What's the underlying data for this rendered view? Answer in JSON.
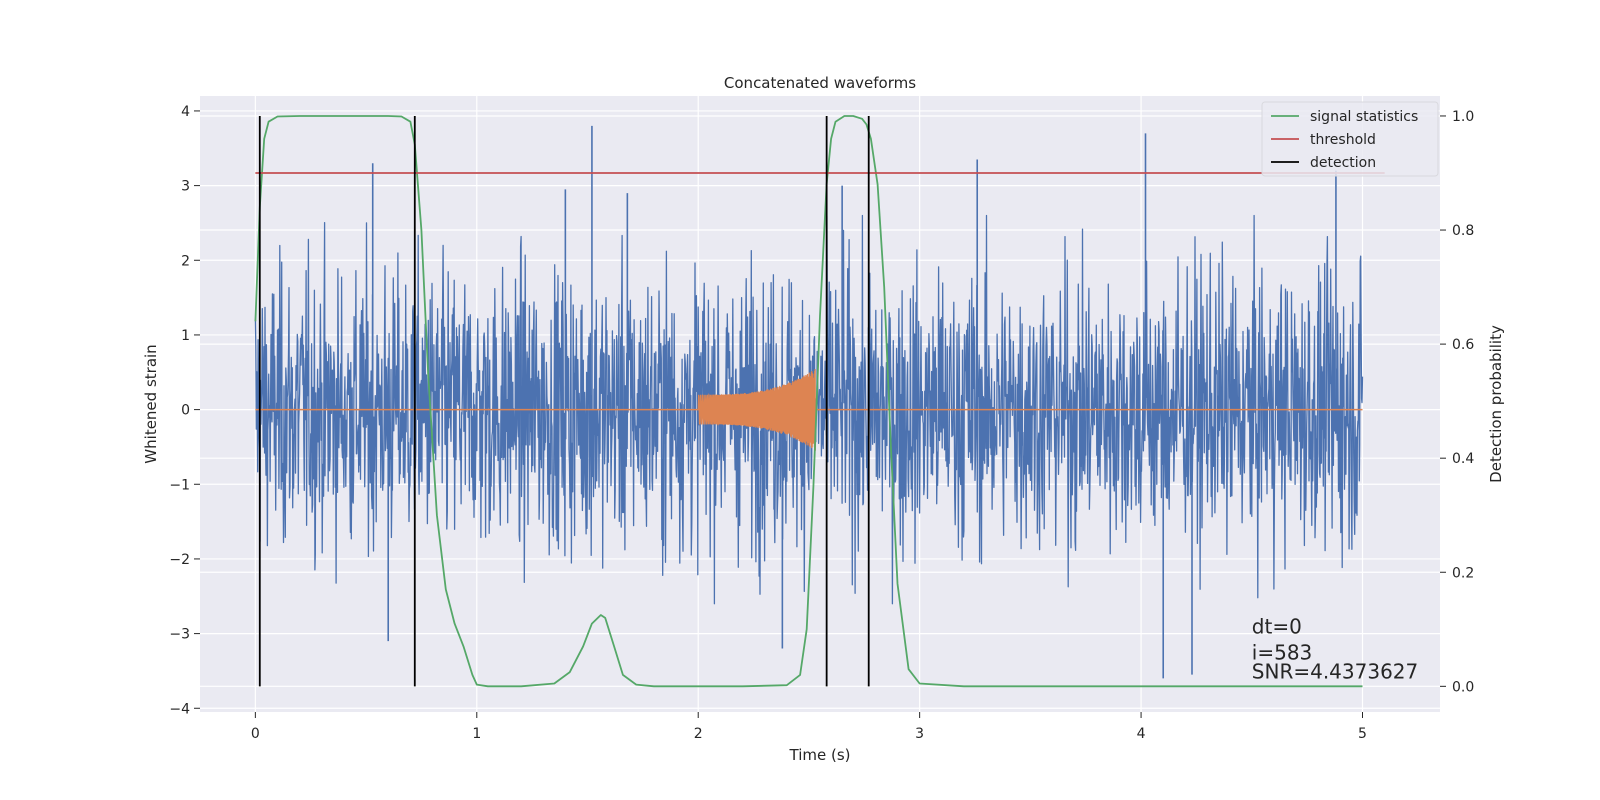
{
  "chart_data": {
    "type": "line",
    "title": "Concatenated waveforms",
    "xlabel": "Time (s)",
    "ylabel": "Whitened strain",
    "y2label": "Detection probability",
    "xlim": [
      -0.25,
      5.35
    ],
    "ylim": [
      -4.05,
      4.2
    ],
    "y2lim": [
      -0.045,
      1.035
    ],
    "xticks": [
      0,
      1,
      2,
      3,
      4,
      5
    ],
    "yticks": [
      -4,
      -3,
      -2,
      -1,
      0,
      1,
      2,
      3,
      4
    ],
    "y2ticks": [
      0.0,
      0.2,
      0.4,
      0.6,
      0.8,
      1.0
    ],
    "xtick_labels": [
      "0",
      "1",
      "2",
      "3",
      "4",
      "5"
    ],
    "ytick_labels": [
      "−4",
      "−3",
      "−2",
      "−1",
      "0",
      "1",
      "2",
      "3",
      "4"
    ],
    "y2tick_labels": [
      "0.0",
      "0.2",
      "0.4",
      "0.6",
      "0.8",
      "1.0"
    ],
    "grid": true,
    "legend_position": "top-right",
    "colors": {
      "background": "#eaeaf2",
      "strain": "#4c72b0",
      "template": "#dd8452",
      "statistic": "#55a868",
      "threshold": "#c44e52",
      "detection": "#000000"
    },
    "series": [
      {
        "name": "signal statistics",
        "axis": "right",
        "x": [
          0.0,
          0.02,
          0.04,
          0.06,
          0.1,
          0.2,
          0.4,
          0.6,
          0.66,
          0.7,
          0.72,
          0.75,
          0.78,
          0.82,
          0.86,
          0.9,
          0.94,
          0.98,
          1.0,
          1.05,
          1.2,
          1.35,
          1.42,
          1.48,
          1.52,
          1.56,
          1.58,
          1.62,
          1.66,
          1.72,
          1.8,
          2.0,
          2.2,
          2.4,
          2.46,
          2.49,
          2.52,
          2.55,
          2.58,
          2.6,
          2.62,
          2.66,
          2.7,
          2.74,
          2.76,
          2.78,
          2.81,
          2.84,
          2.87,
          2.9,
          2.95,
          3.0,
          3.2,
          3.6,
          4.0,
          4.5,
          5.0
        ],
        "y": [
          0.64,
          0.84,
          0.96,
          0.99,
          0.999,
          1.0,
          1.0,
          1.0,
          0.999,
          0.99,
          0.95,
          0.8,
          0.55,
          0.3,
          0.17,
          0.11,
          0.07,
          0.02,
          0.003,
          0.0,
          0.0,
          0.005,
          0.025,
          0.07,
          0.11,
          0.125,
          0.12,
          0.07,
          0.02,
          0.003,
          0.0,
          0.0,
          0.0,
          0.002,
          0.02,
          0.1,
          0.35,
          0.65,
          0.88,
          0.96,
          0.99,
          1.0,
          1.0,
          0.995,
          0.985,
          0.96,
          0.88,
          0.7,
          0.42,
          0.18,
          0.03,
          0.005,
          0.0,
          0.0,
          0.0,
          0.0,
          0.0
        ]
      },
      {
        "name": "threshold",
        "axis": "right",
        "x": [
          0.0,
          5.1
        ],
        "y": [
          0.9,
          0.9
        ]
      },
      {
        "name": "detection",
        "axis": "right",
        "x_lines": [
          0.02,
          0.72,
          2.58,
          2.77
        ],
        "y_range": [
          0.0,
          1.0
        ]
      }
    ],
    "strain": {
      "axis": "left",
      "x_range": [
        0.0,
        5.0
      ],
      "amplitude_estimate": 1.0,
      "peaks": [
        {
          "x": 0.53,
          "y": 3.3
        },
        {
          "x": 1.4,
          "y": 2.95
        },
        {
          "x": 1.68,
          "y": 2.9
        },
        {
          "x": 2.65,
          "y": 3.0
        },
        {
          "x": 3.26,
          "y": 3.35
        },
        {
          "x": 4.02,
          "y": 3.7
        },
        {
          "x": 4.88,
          "y": 3.2
        },
        {
          "x": 1.52,
          "y": 3.8
        },
        {
          "x": 4.1,
          "y": -3.6
        },
        {
          "x": 4.23,
          "y": -3.55
        },
        {
          "x": 0.6,
          "y": -3.1
        },
        {
          "x": 2.38,
          "y": -3.2
        }
      ]
    },
    "template": {
      "axis": "left",
      "x_range": [
        2.0,
        2.53
      ],
      "amplitude_start": 0.2,
      "amplitude_end": 0.55
    },
    "annotations": [
      {
        "text": "dt=0",
        "x": 4.5,
        "y": -3.0
      },
      {
        "text": "i=583",
        "x": 4.5,
        "y": -3.35
      },
      {
        "text": "SNR=4.4373627",
        "x": 4.5,
        "y": -3.6
      }
    ]
  }
}
